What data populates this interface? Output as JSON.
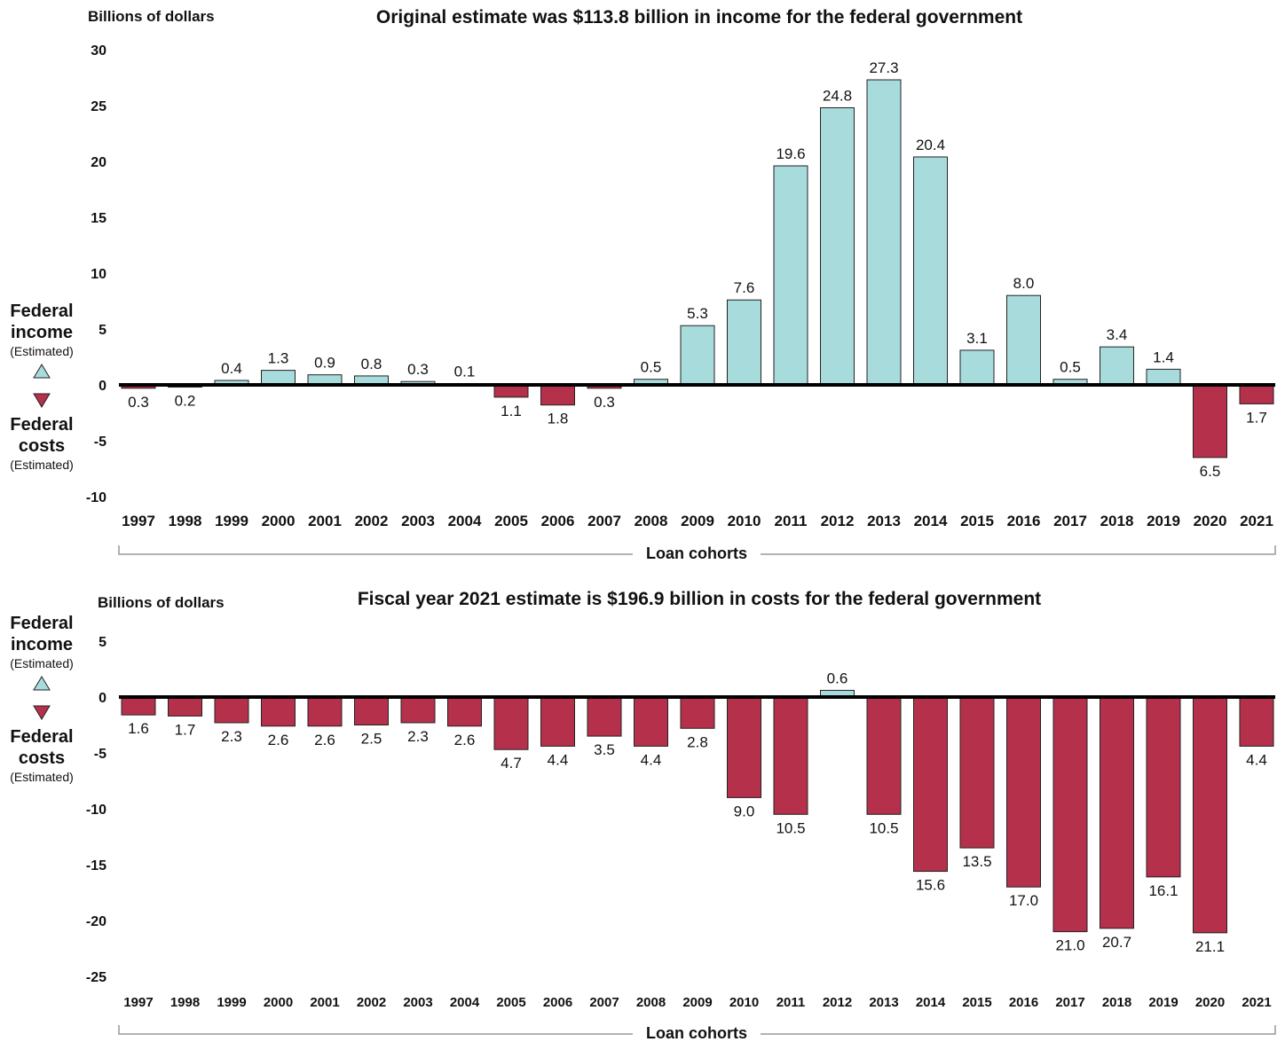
{
  "colors": {
    "income": "#a8dbdc",
    "cost": "#b5304a",
    "baseline": "#000000",
    "bracket": "#999999",
    "outline": "#222222"
  },
  "side_legend": {
    "income_line1": "Federal",
    "income_line2": "income",
    "income_sub": "(Estimated)",
    "costs_line1": "Federal",
    "costs_line2": "costs",
    "costs_sub": "(Estimated)",
    "up_icon": "up-triangle-icon",
    "down_icon": "down-triangle-icon"
  },
  "chart_data": [
    {
      "type": "bar",
      "title": "Original estimate was $113.8 billion in income for the federal government",
      "ylabel": "Billions of dollars",
      "xlabel": "Loan cohorts",
      "ylim": [
        -10,
        30
      ],
      "yticks": [
        30,
        25,
        20,
        15,
        10,
        5,
        0,
        -5,
        -10
      ],
      "categories": [
        "1997",
        "1998",
        "1999",
        "2000",
        "2001",
        "2002",
        "2003",
        "2004",
        "2005",
        "2006",
        "2007",
        "2008",
        "2009",
        "2010",
        "2011",
        "2012",
        "2013",
        "2014",
        "2015",
        "2016",
        "2017",
        "2018",
        "2019",
        "2020",
        "2021"
      ],
      "values": [
        -0.3,
        -0.2,
        0.4,
        1.3,
        0.9,
        0.8,
        0.3,
        0.1,
        -1.1,
        -1.8,
        -0.3,
        0.5,
        5.3,
        7.6,
        19.6,
        24.8,
        27.3,
        20.4,
        3.1,
        8.0,
        0.5,
        3.4,
        1.4,
        -6.5,
        -1.7
      ],
      "data_labels": [
        "0.3",
        "0.2",
        "0.4",
        "1.3",
        "0.9",
        "0.8",
        "0.3",
        "0.1",
        "1.1",
        "1.8",
        "0.3",
        "0.5",
        "5.3",
        "7.6",
        "19.6",
        "24.8",
        "27.3",
        "20.4",
        "3.1",
        "8.0",
        "0.5",
        "3.4",
        "1.4",
        "6.5",
        "1.7"
      ]
    },
    {
      "type": "bar",
      "title": "Fiscal year 2021 estimate is $196.9 billion in costs for the federal government",
      "ylabel": "Billions of dollars",
      "xlabel": "Loan cohorts",
      "ylim": [
        -25,
        5
      ],
      "yticks": [
        5,
        0,
        -5,
        -10,
        -15,
        -20,
        -25
      ],
      "categories": [
        "1997",
        "1998",
        "1999",
        "2000",
        "2001",
        "2002",
        "2003",
        "2004",
        "2005",
        "2006",
        "2007",
        "2008",
        "2009",
        "2010",
        "2011",
        "2012",
        "2013",
        "2014",
        "2015",
        "2016",
        "2017",
        "2018",
        "2019",
        "2020",
        "2021"
      ],
      "values": [
        -1.6,
        -1.7,
        -2.3,
        -2.6,
        -2.6,
        -2.5,
        -2.3,
        -2.6,
        -4.7,
        -4.4,
        -3.5,
        -4.4,
        -2.8,
        -9.0,
        -10.5,
        0.6,
        -10.5,
        -15.6,
        -13.5,
        -17.0,
        -21.0,
        -20.7,
        -16.1,
        -21.1,
        -4.4
      ],
      "data_labels": [
        "1.6",
        "1.7",
        "2.3",
        "2.6",
        "2.6",
        "2.5",
        "2.3",
        "2.6",
        "4.7",
        "4.4",
        "3.5",
        "4.4",
        "2.8",
        "9.0",
        "10.5",
        "0.6",
        "10.5",
        "15.6",
        "13.5",
        "17.0",
        "21.0",
        "20.7",
        "16.1",
        "21.1",
        "4.4"
      ]
    }
  ]
}
